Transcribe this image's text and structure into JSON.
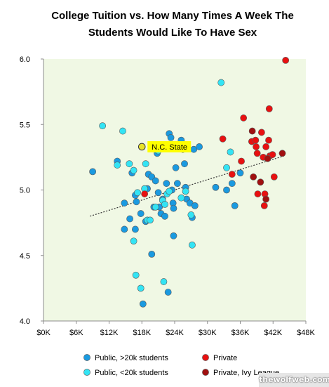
{
  "chart_data": {
    "type": "scatter",
    "title_lines": [
      "College Tuition vs. How Many Times A Week The",
      "Students Would Like To Have Sex"
    ],
    "xlabel": "",
    "ylabel": "",
    "xlim": [
      0,
      48000
    ],
    "ylim": [
      4.0,
      6.0
    ],
    "x_ticks": [
      0,
      6000,
      12000,
      18000,
      24000,
      30000,
      36000,
      42000,
      48000
    ],
    "x_tick_labels": [
      "$0K",
      "$6K",
      "$12K",
      "$18K",
      "$24K",
      "$30K",
      "$36K",
      "$42K",
      "$48K"
    ],
    "y_ticks": [
      4.0,
      4.5,
      5.0,
      5.5,
      6.0
    ],
    "y_tick_labels": [
      "4.0",
      "4.5",
      "5.0",
      "5.5",
      "6.0"
    ],
    "grid": false,
    "plot_background": "#f0f8e4",
    "legend_position": "bottom",
    "series": [
      {
        "name": "Public, >20k students",
        "color": "#1a9ae0",
        "points": [
          [
            9000,
            5.14
          ],
          [
            13500,
            5.22
          ],
          [
            14800,
            4.9
          ],
          [
            14800,
            4.7
          ],
          [
            15800,
            4.78
          ],
          [
            16200,
            5.13
          ],
          [
            16800,
            4.7
          ],
          [
            16800,
            4.96
          ],
          [
            17000,
            4.91
          ],
          [
            17800,
            4.82
          ],
          [
            18200,
            4.13
          ],
          [
            18700,
            4.76
          ],
          [
            19000,
            5.01
          ],
          [
            19200,
            5.12
          ],
          [
            19800,
            5.1
          ],
          [
            19800,
            4.51
          ],
          [
            20200,
            4.87
          ],
          [
            20500,
            5.07
          ],
          [
            20800,
            5.28
          ],
          [
            21000,
            4.98
          ],
          [
            21200,
            4.87
          ],
          [
            21500,
            4.82
          ],
          [
            21800,
            4.93
          ],
          [
            22200,
            4.8
          ],
          [
            22500,
            5.05
          ],
          [
            22800,
            4.22
          ],
          [
            23000,
            5.43
          ],
          [
            23300,
            5.4
          ],
          [
            23500,
            5.0
          ],
          [
            23700,
            4.9
          ],
          [
            23800,
            4.86
          ],
          [
            23800,
            4.65
          ],
          [
            24200,
            5.17
          ],
          [
            24500,
            5.05
          ],
          [
            25200,
            5.38
          ],
          [
            25500,
            5.31
          ],
          [
            25800,
            5.2
          ],
          [
            26000,
            5.02
          ],
          [
            26200,
            4.93
          ],
          [
            26800,
            4.9
          ],
          [
            27200,
            4.79
          ],
          [
            27700,
            4.88
          ],
          [
            27500,
            5.31
          ],
          [
            28500,
            5.33
          ],
          [
            31500,
            5.02
          ],
          [
            33500,
            5.0
          ],
          [
            34500,
            5.05
          ],
          [
            35000,
            4.88
          ],
          [
            36000,
            5.13
          ]
        ]
      },
      {
        "name": "Public, <20k students",
        "color": "#33e4f4",
        "points": [
          [
            10800,
            5.49
          ],
          [
            13500,
            5.19
          ],
          [
            14500,
            5.45
          ],
          [
            15700,
            5.2
          ],
          [
            16500,
            5.15
          ],
          [
            16500,
            4.61
          ],
          [
            16900,
            4.35
          ],
          [
            17200,
            4.98
          ],
          [
            17800,
            4.25
          ],
          [
            18500,
            5.01
          ],
          [
            18700,
            5.2
          ],
          [
            19000,
            4.77
          ],
          [
            19500,
            4.77
          ],
          [
            20500,
            4.87
          ],
          [
            21000,
            5.3
          ],
          [
            21800,
            4.92
          ],
          [
            22000,
            4.3
          ],
          [
            22200,
            4.89
          ],
          [
            22600,
            4.97
          ],
          [
            23000,
            4.99
          ],
          [
            25200,
            4.94
          ],
          [
            26000,
            4.99
          ],
          [
            27000,
            4.81
          ],
          [
            27200,
            4.58
          ],
          [
            32500,
            5.82
          ],
          [
            33500,
            5.17
          ],
          [
            34200,
            5.29
          ]
        ]
      },
      {
        "name": "Private",
        "color": "#e81010",
        "points": [
          [
            18500,
            4.97
          ],
          [
            32800,
            5.39
          ],
          [
            34500,
            5.12
          ],
          [
            36200,
            5.22
          ],
          [
            36600,
            5.55
          ],
          [
            38100,
            5.37
          ],
          [
            38800,
            5.38
          ],
          [
            38900,
            5.33
          ],
          [
            39100,
            5.28
          ],
          [
            39200,
            4.97
          ],
          [
            39900,
            5.44
          ],
          [
            40200,
            5.25
          ],
          [
            40400,
            4.88
          ],
          [
            40500,
            4.97
          ],
          [
            40700,
            5.33
          ],
          [
            41200,
            5.38
          ],
          [
            41300,
            5.62
          ],
          [
            41400,
            5.26
          ],
          [
            41900,
            5.27
          ],
          [
            42200,
            5.1
          ],
          [
            44300,
            5.99
          ]
        ]
      },
      {
        "name": "Private, Ivy League",
        "color": "#a01010",
        "points": [
          [
            38200,
            5.45
          ],
          [
            38400,
            5.1
          ],
          [
            39700,
            5.06
          ],
          [
            40700,
            4.93
          ],
          [
            41000,
            5.24
          ],
          [
            43700,
            5.28
          ]
        ]
      }
    ],
    "trendline": {
      "style": "dotted",
      "color": "#333333",
      "from": [
        8500,
        4.8
      ],
      "to": [
        44000,
        5.26
      ]
    },
    "annotations": [
      {
        "text": "N.C. State",
        "x": 18000,
        "y": 5.33,
        "marker_color": "#e8e22a",
        "label_background": "#ffff00"
      }
    ]
  },
  "watermark": "thewolfweb.com"
}
